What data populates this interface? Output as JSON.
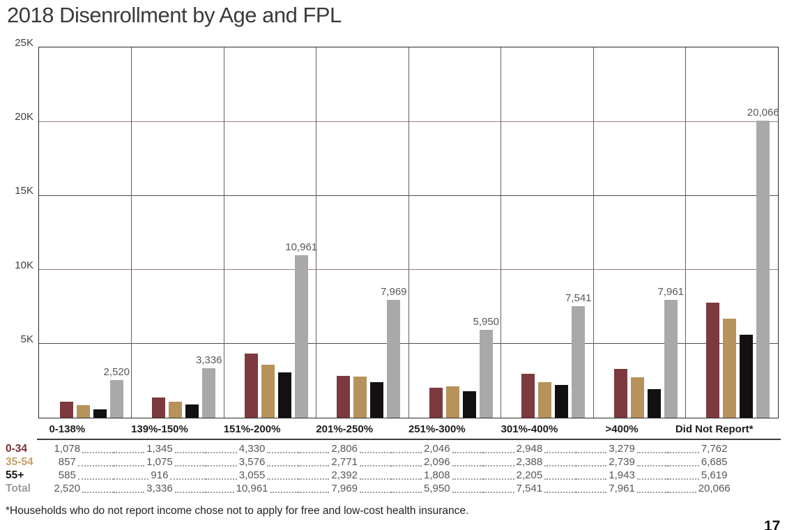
{
  "page": {
    "title": "2018 Disenrollment by Age and FPL",
    "footnote": "*Households who do not report income chose not to apply for free and low-cost health insurance.",
    "page_number": "17"
  },
  "chart_data": {
    "type": "bar",
    "title": "2018 Disenrollment by Age and FPL",
    "categories": [
      "0-138%",
      "139%-150%",
      "151%-200%",
      "201%-250%",
      "251%-300%",
      "301%-400%",
      ">400%",
      "Did Not Report*"
    ],
    "series": [
      {
        "name": "0-34",
        "bar_color": "#7C393E",
        "header_color": "#7B3035",
        "show_value_label": false,
        "values": [
          1078,
          1345,
          4330,
          2806,
          2046,
          2948,
          3279,
          7762
        ]
      },
      {
        "name": "35-54",
        "bar_color": "#B7925A",
        "header_color": "#C4A269",
        "show_value_label": false,
        "values": [
          857,
          1075,
          3576,
          2771,
          2096,
          2388,
          2739,
          6685
        ]
      },
      {
        "name": "55+",
        "bar_color": "#121011",
        "header_color": "#1A1718",
        "show_value_label": false,
        "values": [
          585,
          916,
          3055,
          2392,
          1808,
          2205,
          1943,
          5619
        ]
      },
      {
        "name": "Total",
        "bar_color": "#A9A9A9",
        "header_color": "#9C9C9C",
        "show_value_label": true,
        "values": [
          2520,
          3336,
          10961,
          7969,
          5950,
          7541,
          7961,
          20066
        ]
      }
    ],
    "bar_value_labels": [
      "2,520",
      "3,336",
      "10,961",
      "7,969",
      "5,950",
      "7,541",
      "7,961",
      "20,066"
    ],
    "value_label_color": "#595959",
    "y_axis": {
      "max": 25000,
      "ticks": [
        {
          "label": "25K",
          "value": 25000
        },
        {
          "label": "20K",
          "value": 20000
        },
        {
          "label": "15K",
          "value": 15000
        },
        {
          "label": "10K",
          "value": 10000
        },
        {
          "label": "5K",
          "value": 5000
        }
      ],
      "gridlines": [
        {
          "value": 20000,
          "color": "#A17D7D"
        },
        {
          "value": 15000,
          "color": "#4D4D4D"
        },
        {
          "value": 10000,
          "color": "#A17D7D"
        },
        {
          "value": 5000,
          "color": "#4D4D4D"
        }
      ]
    },
    "grid": true,
    "legend_position": "table-row-headers"
  },
  "table": {
    "rows": [
      {
        "header": "0-34",
        "values": [
          "1,078",
          "1,345",
          "4,330",
          "2,806",
          "2,046",
          "2,948",
          "3,279",
          "7,762"
        ]
      },
      {
        "header": "35-54",
        "values": [
          "857",
          "1,075",
          "3,576",
          "2,771",
          "2,096",
          "2,388",
          "2,739",
          "6,685"
        ]
      },
      {
        "header": "55+",
        "values": [
          "585",
          "916",
          "3,055",
          "2,392",
          "1,808",
          "2,205",
          "1,943",
          "5,619"
        ]
      },
      {
        "header": "Total",
        "values": [
          "2,520",
          "3,336",
          "10,961",
          "7,969",
          "5,950",
          "7,541",
          "7,961",
          "20,066"
        ]
      }
    ]
  }
}
